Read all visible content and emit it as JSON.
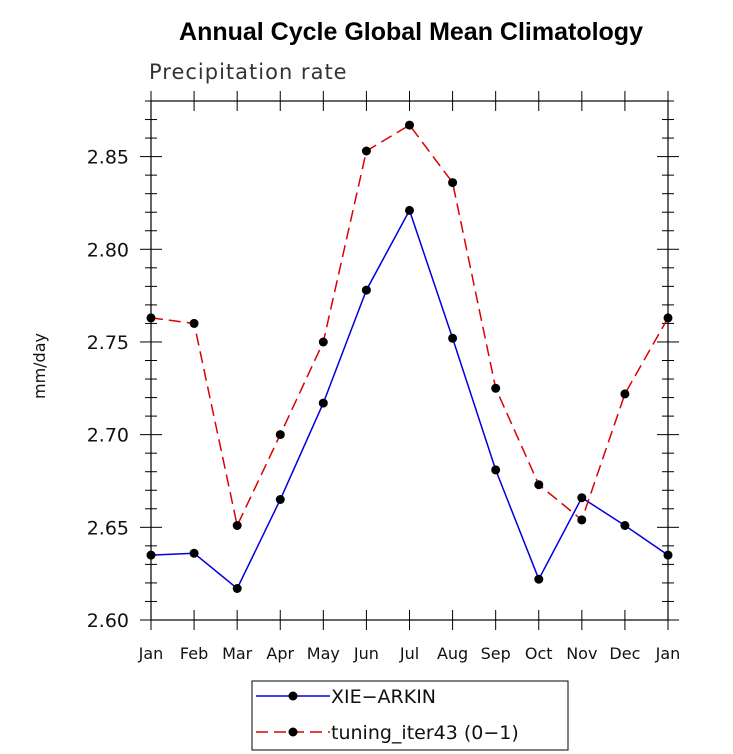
{
  "chart_data": {
    "type": "line",
    "title": "Annual Cycle Global Mean Climatology",
    "subtitle": "Precipitation rate",
    "xlabel": "",
    "ylabel": "mm/day",
    "categories": [
      "Jan",
      "Feb",
      "Mar",
      "Apr",
      "May",
      "Jun",
      "Jul",
      "Aug",
      "Sep",
      "Oct",
      "Nov",
      "Dec",
      "Jan"
    ],
    "ylim": [
      2.6,
      2.88
    ],
    "yticks": [
      "2.60",
      "2.65",
      "2.70",
      "2.75",
      "2.80",
      "2.85"
    ],
    "grid": false,
    "legend_position": "bottom-center",
    "series": [
      {
        "name": "XIE−ARKIN",
        "color": "#0000dd",
        "dash": "solid",
        "marker": "filled-circle",
        "values": [
          2.635,
          2.636,
          2.617,
          2.665,
          2.717,
          2.778,
          2.821,
          2.752,
          2.681,
          2.622,
          2.666,
          2.651,
          2.635
        ]
      },
      {
        "name": "tuning_iter43 (0−1)",
        "color": "#dd0000",
        "dash": "dashed",
        "marker": "filled-circle",
        "values": [
          2.763,
          2.76,
          2.651,
          2.7,
          2.75,
          2.853,
          2.867,
          2.836,
          2.725,
          2.673,
          2.654,
          2.722,
          2.763
        ]
      }
    ]
  }
}
